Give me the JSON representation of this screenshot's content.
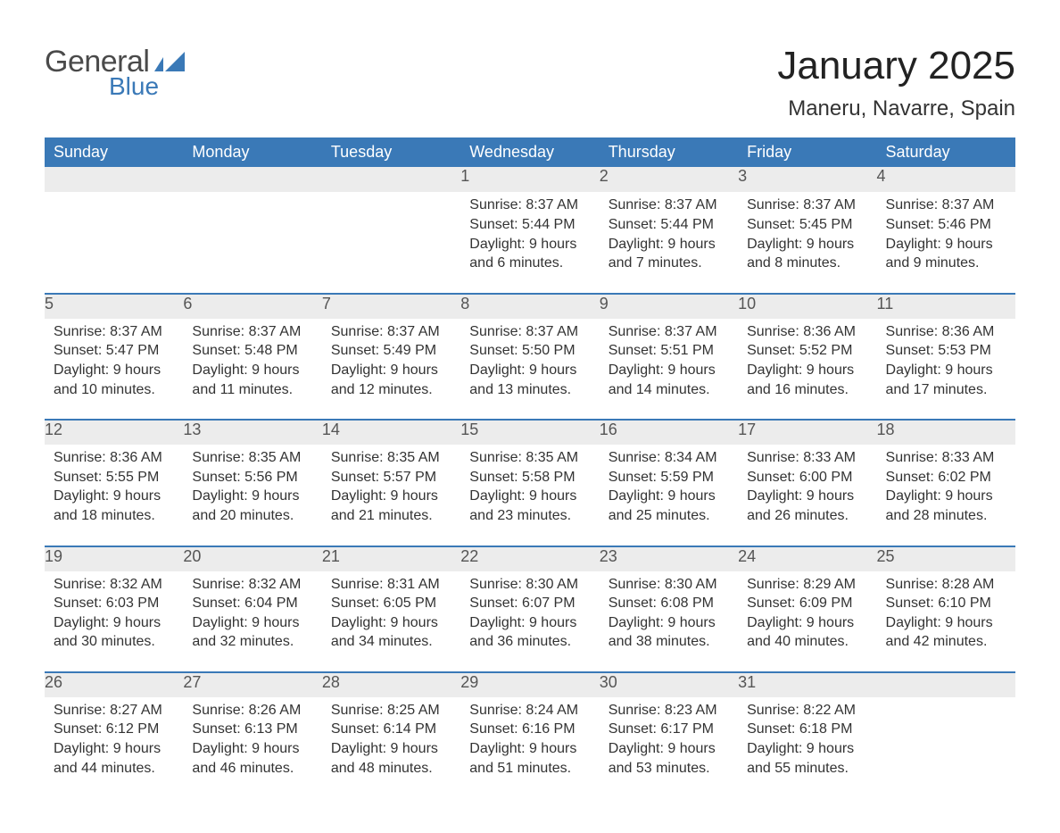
{
  "logo": {
    "general": "General",
    "blue": "Blue"
  },
  "title": "January 2025",
  "location": "Maneru, Navarre, Spain",
  "colors": {
    "header_bg": "#3a79b7",
    "header_text": "#ffffff",
    "daynum_bg": "#ececec",
    "daynum_text": "#555555",
    "body_text": "#333333",
    "row_border": "#3a79b7",
    "page_bg": "#ffffff",
    "logo_gray": "#4a4a4a",
    "logo_blue": "#3a79b7"
  },
  "typography": {
    "title_fontsize": 44,
    "location_fontsize": 24,
    "dayheader_fontsize": 18,
    "daynum_fontsize": 18,
    "body_fontsize": 16,
    "logo_general_fontsize": 34,
    "logo_blue_fontsize": 28
  },
  "day_headers": [
    "Sunday",
    "Monday",
    "Tuesday",
    "Wednesday",
    "Thursday",
    "Friday",
    "Saturday"
  ],
  "weeks": [
    [
      {
        "num": "",
        "sunrise": "",
        "sunset": "",
        "daylight": ""
      },
      {
        "num": "",
        "sunrise": "",
        "sunset": "",
        "daylight": ""
      },
      {
        "num": "",
        "sunrise": "",
        "sunset": "",
        "daylight": ""
      },
      {
        "num": "1",
        "sunrise": "Sunrise: 8:37 AM",
        "sunset": "Sunset: 5:44 PM",
        "daylight": "Daylight: 9 hours and 6 minutes."
      },
      {
        "num": "2",
        "sunrise": "Sunrise: 8:37 AM",
        "sunset": "Sunset: 5:44 PM",
        "daylight": "Daylight: 9 hours and 7 minutes."
      },
      {
        "num": "3",
        "sunrise": "Sunrise: 8:37 AM",
        "sunset": "Sunset: 5:45 PM",
        "daylight": "Daylight: 9 hours and 8 minutes."
      },
      {
        "num": "4",
        "sunrise": "Sunrise: 8:37 AM",
        "sunset": "Sunset: 5:46 PM",
        "daylight": "Daylight: 9 hours and 9 minutes."
      }
    ],
    [
      {
        "num": "5",
        "sunrise": "Sunrise: 8:37 AM",
        "sunset": "Sunset: 5:47 PM",
        "daylight": "Daylight: 9 hours and 10 minutes."
      },
      {
        "num": "6",
        "sunrise": "Sunrise: 8:37 AM",
        "sunset": "Sunset: 5:48 PM",
        "daylight": "Daylight: 9 hours and 11 minutes."
      },
      {
        "num": "7",
        "sunrise": "Sunrise: 8:37 AM",
        "sunset": "Sunset: 5:49 PM",
        "daylight": "Daylight: 9 hours and 12 minutes."
      },
      {
        "num": "8",
        "sunrise": "Sunrise: 8:37 AM",
        "sunset": "Sunset: 5:50 PM",
        "daylight": "Daylight: 9 hours and 13 minutes."
      },
      {
        "num": "9",
        "sunrise": "Sunrise: 8:37 AM",
        "sunset": "Sunset: 5:51 PM",
        "daylight": "Daylight: 9 hours and 14 minutes."
      },
      {
        "num": "10",
        "sunrise": "Sunrise: 8:36 AM",
        "sunset": "Sunset: 5:52 PM",
        "daylight": "Daylight: 9 hours and 16 minutes."
      },
      {
        "num": "11",
        "sunrise": "Sunrise: 8:36 AM",
        "sunset": "Sunset: 5:53 PM",
        "daylight": "Daylight: 9 hours and 17 minutes."
      }
    ],
    [
      {
        "num": "12",
        "sunrise": "Sunrise: 8:36 AM",
        "sunset": "Sunset: 5:55 PM",
        "daylight": "Daylight: 9 hours and 18 minutes."
      },
      {
        "num": "13",
        "sunrise": "Sunrise: 8:35 AM",
        "sunset": "Sunset: 5:56 PM",
        "daylight": "Daylight: 9 hours and 20 minutes."
      },
      {
        "num": "14",
        "sunrise": "Sunrise: 8:35 AM",
        "sunset": "Sunset: 5:57 PM",
        "daylight": "Daylight: 9 hours and 21 minutes."
      },
      {
        "num": "15",
        "sunrise": "Sunrise: 8:35 AM",
        "sunset": "Sunset: 5:58 PM",
        "daylight": "Daylight: 9 hours and 23 minutes."
      },
      {
        "num": "16",
        "sunrise": "Sunrise: 8:34 AM",
        "sunset": "Sunset: 5:59 PM",
        "daylight": "Daylight: 9 hours and 25 minutes."
      },
      {
        "num": "17",
        "sunrise": "Sunrise: 8:33 AM",
        "sunset": "Sunset: 6:00 PM",
        "daylight": "Daylight: 9 hours and 26 minutes."
      },
      {
        "num": "18",
        "sunrise": "Sunrise: 8:33 AM",
        "sunset": "Sunset: 6:02 PM",
        "daylight": "Daylight: 9 hours and 28 minutes."
      }
    ],
    [
      {
        "num": "19",
        "sunrise": "Sunrise: 8:32 AM",
        "sunset": "Sunset: 6:03 PM",
        "daylight": "Daylight: 9 hours and 30 minutes."
      },
      {
        "num": "20",
        "sunrise": "Sunrise: 8:32 AM",
        "sunset": "Sunset: 6:04 PM",
        "daylight": "Daylight: 9 hours and 32 minutes."
      },
      {
        "num": "21",
        "sunrise": "Sunrise: 8:31 AM",
        "sunset": "Sunset: 6:05 PM",
        "daylight": "Daylight: 9 hours and 34 minutes."
      },
      {
        "num": "22",
        "sunrise": "Sunrise: 8:30 AM",
        "sunset": "Sunset: 6:07 PM",
        "daylight": "Daylight: 9 hours and 36 minutes."
      },
      {
        "num": "23",
        "sunrise": "Sunrise: 8:30 AM",
        "sunset": "Sunset: 6:08 PM",
        "daylight": "Daylight: 9 hours and 38 minutes."
      },
      {
        "num": "24",
        "sunrise": "Sunrise: 8:29 AM",
        "sunset": "Sunset: 6:09 PM",
        "daylight": "Daylight: 9 hours and 40 minutes."
      },
      {
        "num": "25",
        "sunrise": "Sunrise: 8:28 AM",
        "sunset": "Sunset: 6:10 PM",
        "daylight": "Daylight: 9 hours and 42 minutes."
      }
    ],
    [
      {
        "num": "26",
        "sunrise": "Sunrise: 8:27 AM",
        "sunset": "Sunset: 6:12 PM",
        "daylight": "Daylight: 9 hours and 44 minutes."
      },
      {
        "num": "27",
        "sunrise": "Sunrise: 8:26 AM",
        "sunset": "Sunset: 6:13 PM",
        "daylight": "Daylight: 9 hours and 46 minutes."
      },
      {
        "num": "28",
        "sunrise": "Sunrise: 8:25 AM",
        "sunset": "Sunset: 6:14 PM",
        "daylight": "Daylight: 9 hours and 48 minutes."
      },
      {
        "num": "29",
        "sunrise": "Sunrise: 8:24 AM",
        "sunset": "Sunset: 6:16 PM",
        "daylight": "Daylight: 9 hours and 51 minutes."
      },
      {
        "num": "30",
        "sunrise": "Sunrise: 8:23 AM",
        "sunset": "Sunset: 6:17 PM",
        "daylight": "Daylight: 9 hours and 53 minutes."
      },
      {
        "num": "31",
        "sunrise": "Sunrise: 8:22 AM",
        "sunset": "Sunset: 6:18 PM",
        "daylight": "Daylight: 9 hours and 55 minutes."
      },
      {
        "num": "",
        "sunrise": "",
        "sunset": "",
        "daylight": ""
      }
    ]
  ]
}
